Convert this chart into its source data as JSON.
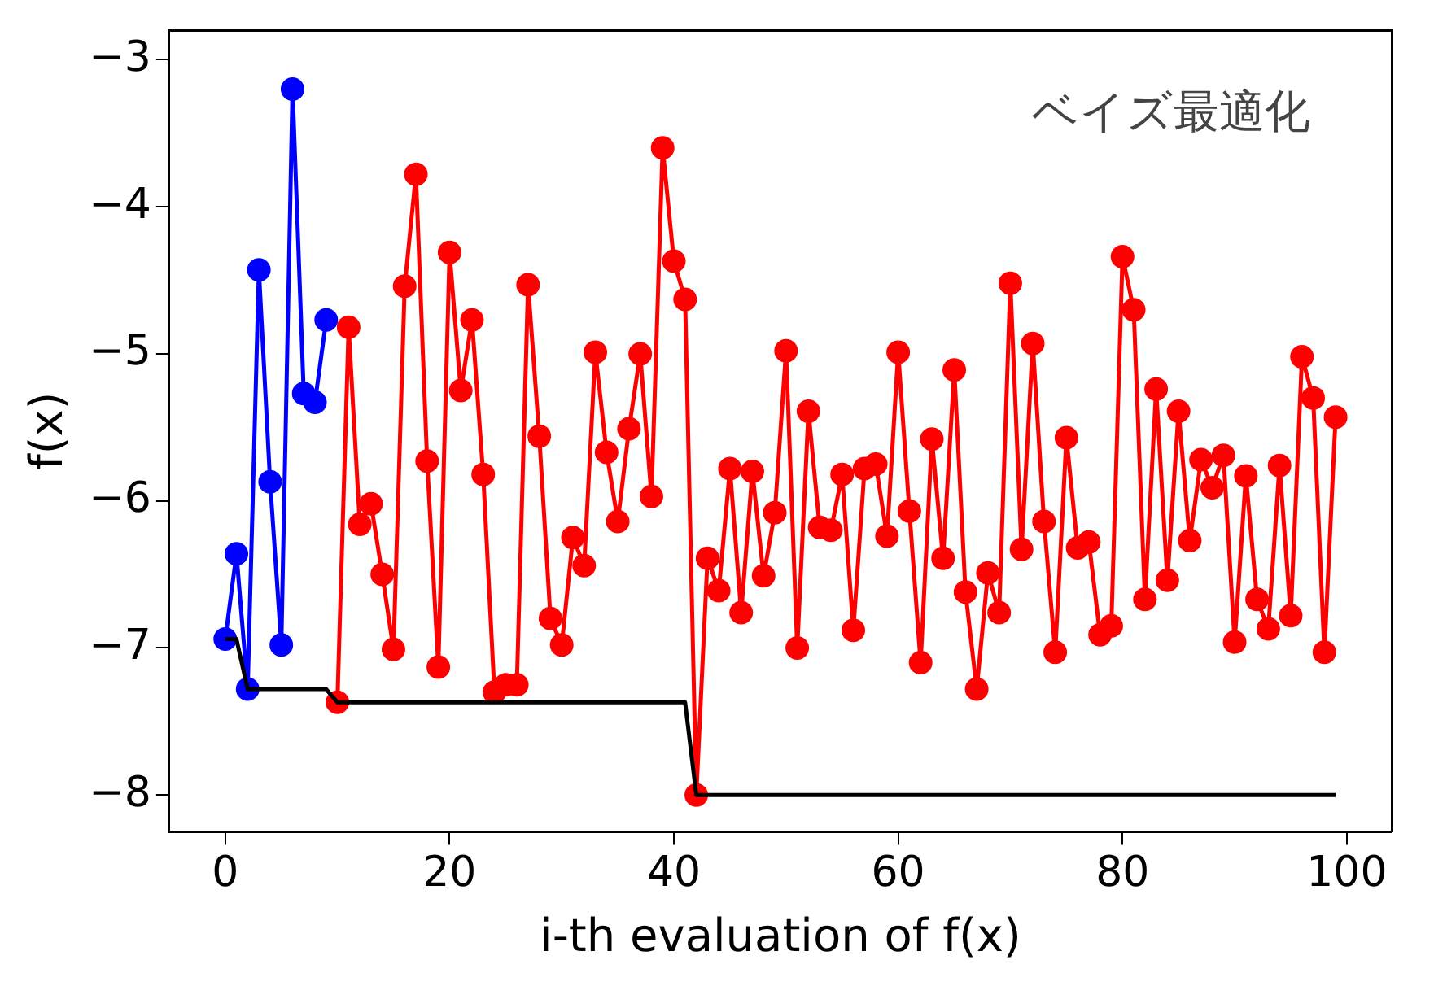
{
  "chart_data": {
    "type": "line",
    "xlabel": "i-th evaluation of f(x)",
    "ylabel": "f(x)",
    "annotations": [
      "ベイズ最適化"
    ],
    "xlim": [
      -5,
      104
    ],
    "xticks": [
      0,
      20,
      40,
      60,
      80,
      100
    ],
    "ylim": [
      -8.25,
      -2.8
    ],
    "yticks": [
      -8,
      -7,
      -6,
      -5,
      -4,
      -3
    ],
    "grid": false,
    "legend": false,
    "series": [
      {
        "color": "#0000ff",
        "marker": "circle",
        "x": [
          0,
          1,
          2,
          3,
          4,
          5,
          6,
          7,
          8,
          9
        ],
        "values": [
          -6.94,
          -6.36,
          -7.28,
          -4.43,
          -5.87,
          -6.98,
          -3.2,
          -5.27,
          -5.33,
          -4.77
        ]
      },
      {
        "color": "#ff0000",
        "marker": "circle",
        "x": [
          10,
          11,
          12,
          13,
          14,
          15,
          16,
          17,
          18,
          19,
          20,
          21,
          22,
          23,
          24,
          25,
          26,
          27,
          28,
          29,
          30,
          31,
          32,
          33,
          34,
          35,
          36,
          37,
          38,
          39,
          40,
          41,
          42,
          43,
          44,
          45,
          46,
          47,
          48,
          49,
          50,
          51,
          52,
          53,
          54,
          55,
          56,
          57,
          58,
          59,
          60,
          61,
          62,
          63,
          64,
          65,
          66,
          67,
          68,
          69,
          70,
          71,
          72,
          73,
          74,
          75,
          76,
          77,
          78,
          79,
          80,
          81,
          82,
          83,
          84,
          85,
          86,
          87,
          88,
          89,
          90,
          91,
          92,
          93,
          94,
          95,
          96,
          97,
          98,
          99
        ],
        "values": [
          -7.37,
          -4.82,
          -6.16,
          -6.02,
          -6.5,
          -7.01,
          -4.54,
          -3.78,
          -5.73,
          -7.13,
          -4.31,
          -5.25,
          -4.77,
          -5.82,
          -7.3,
          -7.25,
          -7.25,
          -4.53,
          -5.56,
          -6.8,
          -6.98,
          -6.25,
          -6.44,
          -4.99,
          -5.67,
          -6.14,
          -5.51,
          -5.0,
          -5.97,
          -3.6,
          -4.37,
          -4.63,
          -8.0,
          -6.39,
          -6.61,
          -5.78,
          -6.76,
          -5.8,
          -6.51,
          -6.08,
          -4.98,
          -7.0,
          -5.39,
          -6.18,
          -6.2,
          -5.82,
          -6.88,
          -5.78,
          -5.75,
          -6.24,
          -4.99,
          -6.07,
          -7.1,
          -5.58,
          -6.39,
          -5.11,
          -6.62,
          -7.28,
          -6.49,
          -6.76,
          -4.52,
          -6.33,
          -4.93,
          -6.14,
          -7.03,
          -5.57,
          -6.32,
          -6.28,
          -6.91,
          -6.85,
          -4.34,
          -4.7,
          -6.67,
          -5.24,
          -6.54,
          -5.39,
          -6.27,
          -5.72,
          -5.91,
          -5.69,
          -6.96,
          -5.83,
          -6.67,
          -6.87,
          -5.76,
          -6.78,
          -5.02,
          -5.3,
          -7.03,
          -5.43
        ]
      },
      {
        "color": "#000000",
        "marker": "none",
        "x": [
          0,
          1,
          2,
          3,
          4,
          5,
          6,
          7,
          8,
          9,
          10,
          11,
          41,
          42,
          99
        ],
        "values": [
          -6.94,
          -6.94,
          -7.28,
          -7.28,
          -7.28,
          -7.28,
          -7.28,
          -7.28,
          -7.28,
          -7.28,
          -7.37,
          -7.37,
          -7.37,
          -8.0,
          -8.0
        ]
      }
    ]
  }
}
